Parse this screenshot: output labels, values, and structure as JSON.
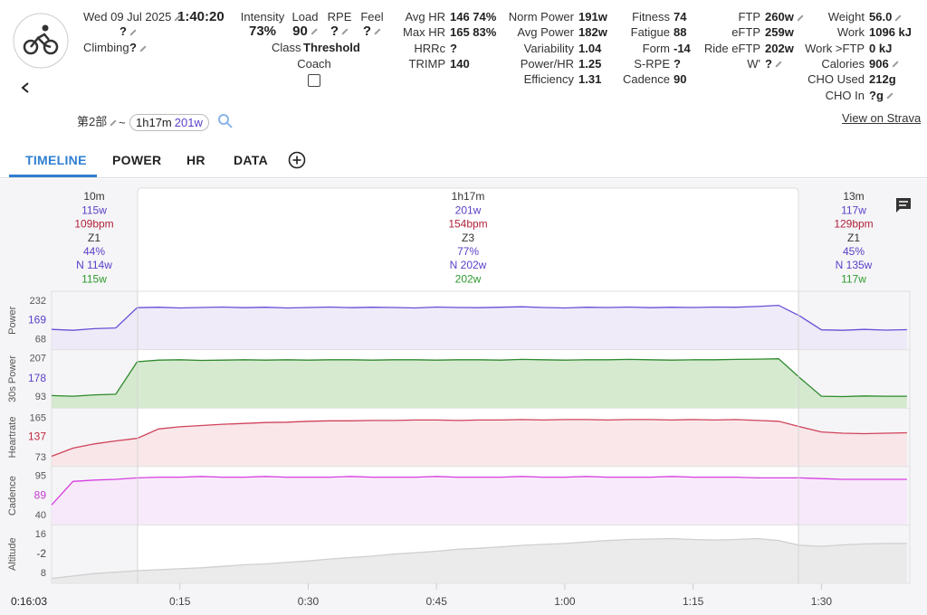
{
  "header": {
    "date": "Wed 09 Jul 2025",
    "duration": "1:40:20",
    "name": "?",
    "climbing": {
      "label": "Climbing",
      "value": "?"
    },
    "summary": [
      {
        "label": "Intensity",
        "value": "73%",
        "editable": false
      },
      {
        "label": "Load",
        "value": "90",
        "editable": true
      },
      {
        "label": "RPE",
        "value": "?",
        "editable": true
      },
      {
        "label": "Feel",
        "value": "?",
        "editable": true
      }
    ],
    "class": {
      "label": "Class",
      "value": "Threshold"
    },
    "coach": "Coach",
    "stat_groups": [
      [
        {
          "label": "Avg HR",
          "value": "146 74%"
        },
        {
          "label": "Max HR",
          "value": "165 83%"
        },
        {
          "label": "HRRc",
          "value": "?"
        },
        {
          "label": "TRIMP",
          "value": "140"
        }
      ],
      [
        {
          "label": "Norm Power",
          "value": "191w"
        },
        {
          "label": "Avg Power",
          "value": "182w"
        },
        {
          "label": "Variability",
          "value": "1.04"
        },
        {
          "label": "Power/HR",
          "value": "1.25"
        },
        {
          "label": "Efficiency",
          "value": "1.31"
        }
      ],
      [
        {
          "label": "Fitness",
          "value": "74"
        },
        {
          "label": "Fatigue",
          "value": "88"
        },
        {
          "label": "Form",
          "value": "-14"
        },
        {
          "label": "S-RPE",
          "value": "?"
        },
        {
          "label": "Cadence",
          "value": "90"
        }
      ],
      [
        {
          "label": "FTP",
          "value": "260w",
          "editable": true
        },
        {
          "label": "eFTP",
          "value": "259w"
        },
        {
          "label": "Ride eFTP",
          "value": "202w"
        },
        {
          "label": "W'",
          "value": "?",
          "editable": true
        }
      ],
      [
        {
          "label": "Weight",
          "value": "56.0",
          "editable": true
        },
        {
          "label": "Work",
          "value": "1096 kJ"
        },
        {
          "label": "Work >FTP",
          "value": "0 kJ"
        },
        {
          "label": "Calories",
          "value": "906",
          "editable": true
        },
        {
          "label": "CHO Used",
          "value": "212g"
        },
        {
          "label": "CHO In",
          "value": "?g",
          "editable": true
        }
      ]
    ],
    "strava": "View on Strava"
  },
  "selection": {
    "label": "第2部",
    "separator": "~",
    "duration": "1h17m",
    "power": "201w"
  },
  "tabs": [
    "TIMELINE",
    "POWER",
    "HR",
    "DATA"
  ],
  "intervals": [
    [
      "10m",
      "115w",
      "109bpm",
      "Z1",
      "44%",
      "N 114w",
      "115w"
    ],
    [
      "1h17m",
      "201w",
      "154bpm",
      "Z3",
      "77%",
      "N 202w",
      "202w"
    ],
    [
      "13m",
      "117w",
      "129bpm",
      "Z1",
      "45%",
      "N 135w",
      "117w"
    ]
  ],
  "cursor_time": "0:16:03",
  "chart_data": {
    "type": "line",
    "x": [
      0,
      2.5,
      5,
      7.5,
      10,
      12.5,
      15,
      17.5,
      20,
      22.5,
      25,
      27.5,
      30,
      32.5,
      35,
      37.5,
      40,
      42.5,
      45,
      47.5,
      50,
      52.5,
      55,
      57.5,
      60,
      62.5,
      65,
      67.5,
      70,
      72.5,
      75,
      77.5,
      80,
      82.5,
      85,
      87.5,
      90,
      92.5,
      95,
      97.5,
      100
    ],
    "xlim": [
      0,
      100.33
    ],
    "xticks": [
      {
        "value": 15,
        "label": "0:15"
      },
      {
        "value": 30,
        "label": "0:30"
      },
      {
        "value": 45,
        "label": "0:45"
      },
      {
        "value": 60,
        "label": "1:00"
      },
      {
        "value": 75,
        "label": "1:15"
      },
      {
        "value": 90,
        "label": "1:30"
      }
    ],
    "panels": [
      {
        "label": "Power",
        "avg": 169,
        "avg_color": "#5b3fc7",
        "yticks": [
          68,
          232
        ],
        "ylim": [
          26,
          274
        ],
        "color": "#6a4fd6",
        "fill": "#ece8f8",
        "values": [
          112,
          108,
          115,
          118,
          204,
          206,
          203,
          205,
          207,
          204,
          206,
          203,
          205,
          207,
          204,
          206,
          205,
          203,
          207,
          205,
          204,
          206,
          208,
          205,
          203,
          206,
          205,
          207,
          204,
          206,
          205,
          207,
          206,
          209,
          214,
          168,
          110,
          108,
          112,
          109,
          111
        ]
      },
      {
        "label": "30s Power",
        "avg": 178,
        "avg_color": "#5b3fc7",
        "yticks": [
          93,
          207
        ],
        "ylim": [
          61,
          234
        ],
        "color": "#2d8a2d",
        "fill": "#cfe6c8",
        "values": [
          98,
          96,
          100,
          102,
          198,
          203,
          204,
          202,
          203,
          204,
          203,
          204,
          203,
          204,
          204,
          203,
          204,
          204,
          203,
          204,
          204,
          203,
          205,
          204,
          203,
          204,
          204,
          205,
          204,
          203,
          204,
          204,
          205,
          206,
          207,
          150,
          96,
          95,
          97,
          96,
          96
        ]
      },
      {
        "label": "Heartrate",
        "avg": 137,
        "avg_color": "#c0283f",
        "yticks": [
          73,
          165
        ],
        "ylim": [
          52,
          189
        ],
        "color": "#d0435a",
        "fill": "#f8e3e6",
        "values": [
          76,
          95,
          105,
          112,
          118,
          140,
          145,
          148,
          151,
          153,
          155,
          156,
          158,
          159,
          159,
          160,
          160,
          161,
          161,
          160,
          161,
          161,
          162,
          161,
          162,
          162,
          161,
          162,
          162,
          161,
          162,
          161,
          162,
          160,
          158,
          145,
          133,
          130,
          129,
          130,
          131
        ]
      },
      {
        "label": "Cadence",
        "avg": 89,
        "avg_color": "#c23bd0",
        "yticks": [
          40,
          95
        ],
        "ylim": [
          27,
          109
        ],
        "color": "#d63fe0",
        "fill": "#f7e6f9",
        "values": [
          55,
          88,
          90,
          91,
          93,
          94,
          94,
          95,
          94,
          94,
          95,
          94,
          94,
          94,
          95,
          94,
          94,
          94,
          95,
          94,
          94,
          94,
          95,
          94,
          94,
          95,
          94,
          94,
          94,
          95,
          94,
          94,
          94,
          93,
          93,
          93,
          92,
          91,
          91,
          91,
          91
        ]
      },
      {
        "label": "Altitude",
        "avg": -2,
        "avg_color": "#444444",
        "yticks": [
          8,
          16
        ],
        "ylim": [
          6,
          18
        ],
        "color": "#cfcfcf",
        "fill": "#e7e7e7",
        "values": [
          7,
          7.5,
          8,
          8.3,
          8.6,
          8.8,
          9,
          9.2,
          9.5,
          9.8,
          10,
          10.3,
          10.6,
          11,
          11.3,
          11.6,
          12,
          12.3,
          12.6,
          13,
          13.2,
          13.5,
          13.8,
          14,
          14.2,
          14.5,
          14.8,
          15,
          15.1,
          15.2,
          15,
          14.9,
          15,
          15.2,
          14.8,
          13.8,
          13.6,
          13.9,
          14.1,
          14.2,
          14.2
        ]
      }
    ]
  }
}
